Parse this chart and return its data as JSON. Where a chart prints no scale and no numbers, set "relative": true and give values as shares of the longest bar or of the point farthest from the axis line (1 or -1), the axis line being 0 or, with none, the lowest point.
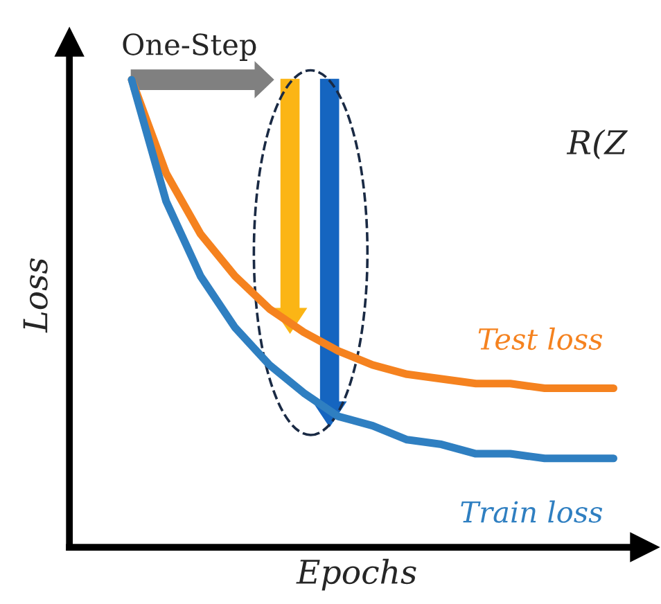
{
  "chart_data": {
    "type": "line",
    "relative": true,
    "xlabel": "Epochs",
    "ylabel": "Loss",
    "categories": [
      null,
      null,
      null,
      null,
      null,
      null,
      null,
      null,
      null,
      null,
      null,
      null,
      null,
      null,
      null
    ],
    "series": [
      {
        "name": "Test loss",
        "color": "#f5821f",
        "values": [
          1,
          0.8,
          0.67,
          0.58,
          0.51,
          0.46,
          0.42,
          0.39,
          0.37,
          0.36,
          0.35,
          0.35,
          0.34,
          0.34,
          0.34
        ]
      },
      {
        "name": "Train loss",
        "color": "#2f7fc1",
        "values": [
          1,
          0.74,
          0.58,
          0.47,
          0.39,
          0.33,
          0.28,
          0.26,
          0.23,
          0.22,
          0.2,
          0.2,
          0.19,
          0.19,
          0.19
        ]
      }
    ],
    "annotations": [
      "One-Step",
      "R(Z"
    ],
    "grid": false,
    "legend": false,
    "marker": "none",
    "line_style": "solid",
    "tick_labels": false
  }
}
